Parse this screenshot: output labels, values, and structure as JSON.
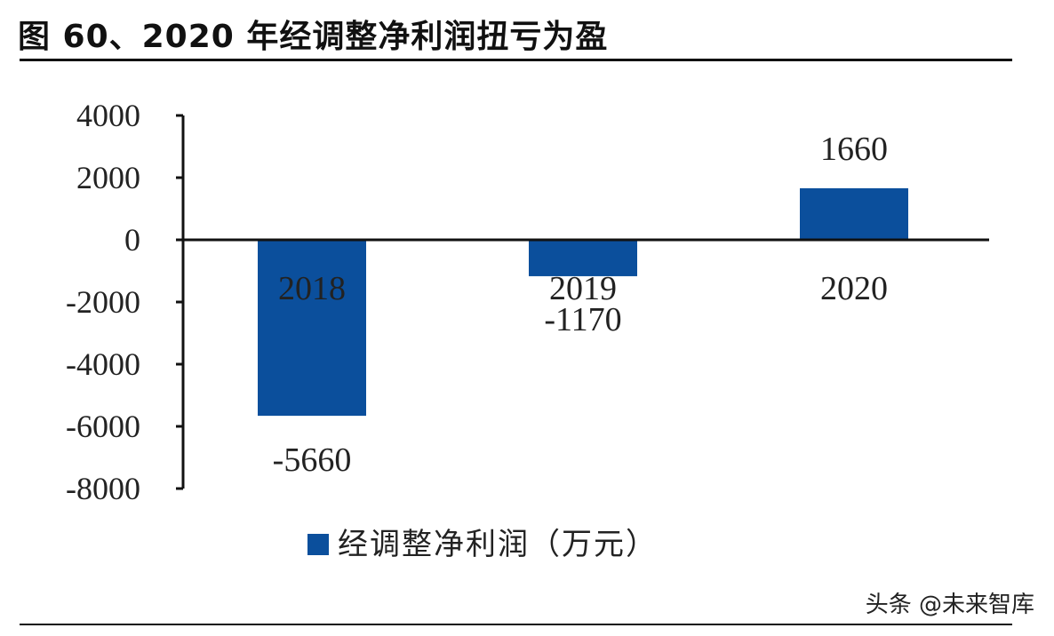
{
  "title": "图 60、2020 年经调整净利润扭亏为盈",
  "watermark": "头条 @未来智库",
  "colors": {
    "bar": "#0b4f9c",
    "axis": "#111111",
    "text": "#222222"
  },
  "chart_data": {
    "type": "bar",
    "categories": [
      "2018",
      "2019",
      "2020"
    ],
    "series": [
      {
        "name": "经调整净利润（万元）",
        "values": [
          -5660,
          -1170,
          1660
        ]
      }
    ],
    "data_labels": [
      "-5660",
      "-1170",
      "1660"
    ],
    "yticks": [
      "4000",
      "2000",
      "0",
      "-2000",
      "-4000",
      "-6000",
      "-8000"
    ],
    "ylim": [
      -8000,
      4000
    ],
    "legend_position": "bottom-center",
    "grid": false
  }
}
